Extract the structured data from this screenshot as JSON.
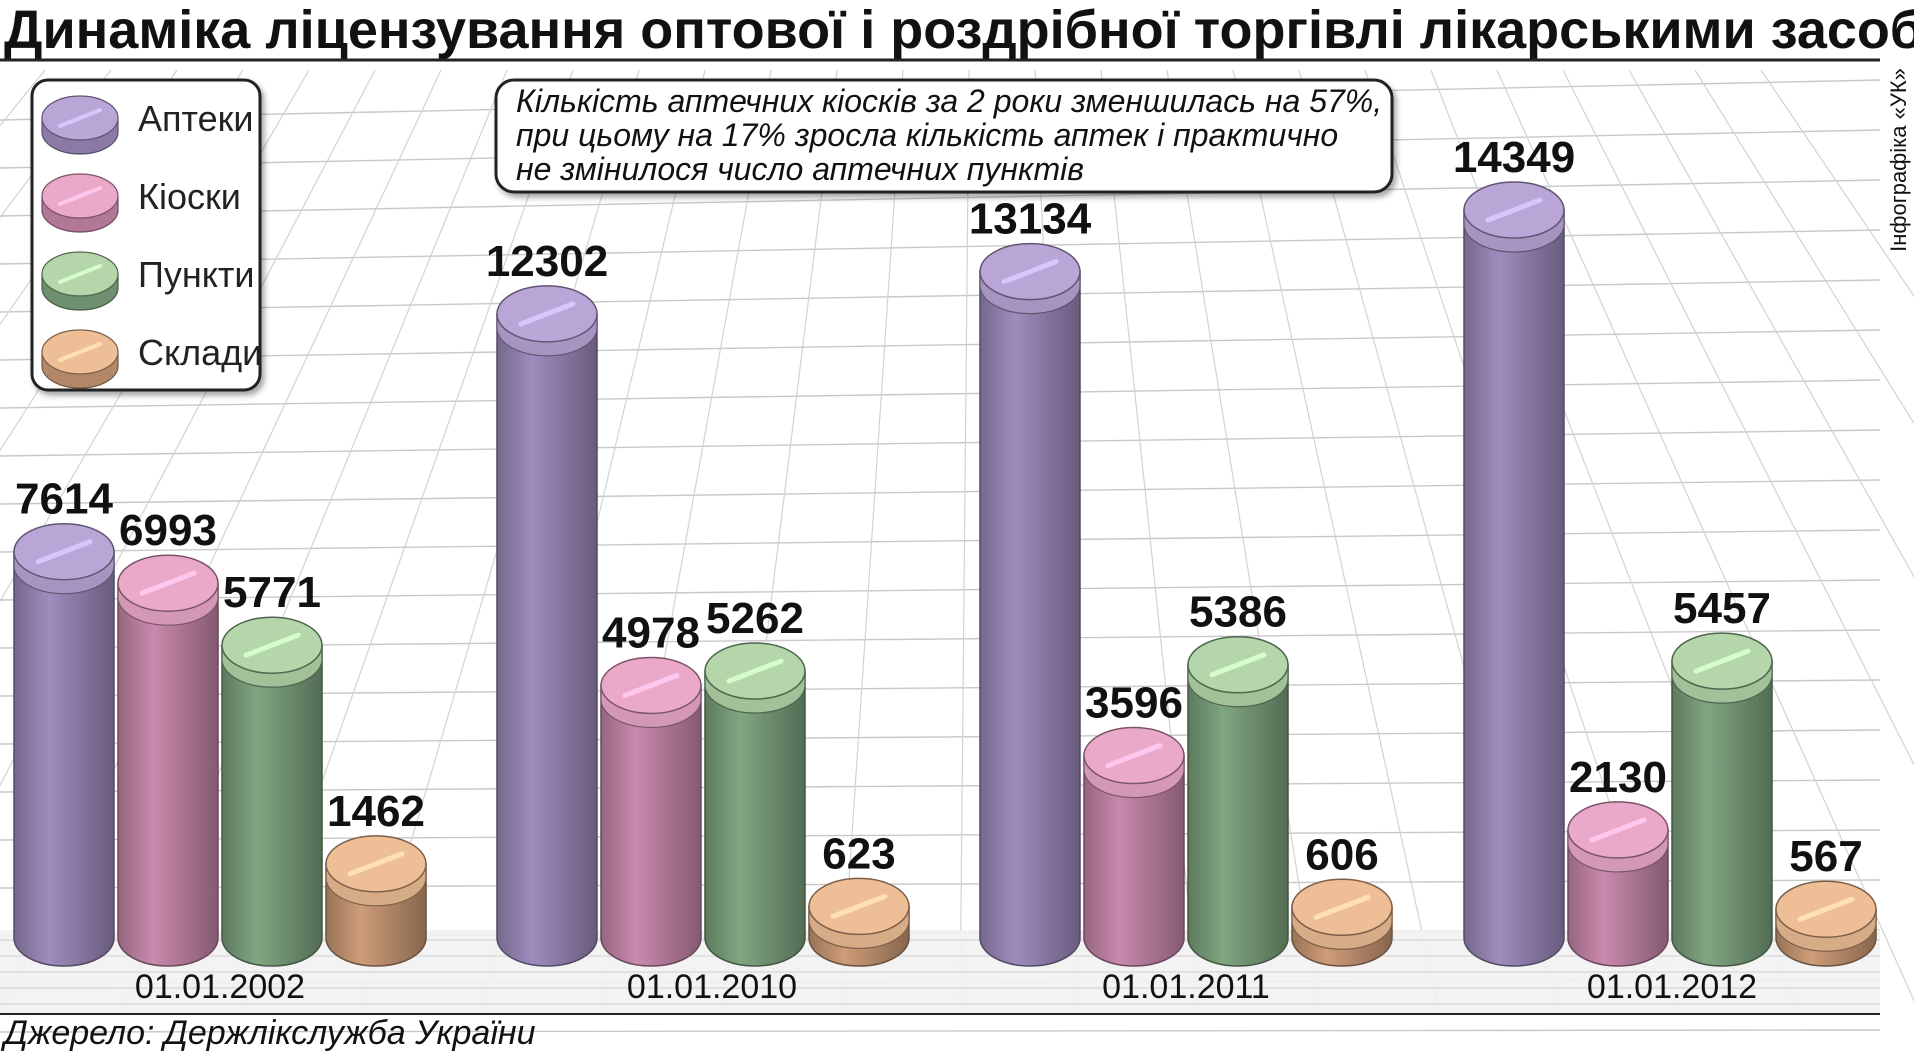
{
  "chart_data": {
    "type": "bar",
    "title": "Динаміка ліцензування оптової і роздрібної торгівлі лікарськими засобами",
    "categories": [
      "01.01.2002",
      "01.01.2010",
      "01.01.2011",
      "01.01.2012"
    ],
    "series": [
      {
        "name": "Аптеки",
        "values": [
          7614,
          12302,
          13134,
          14349
        ],
        "color": "#8a7aa5",
        "top_color": "#b9a6d6"
      },
      {
        "name": "Кіоски",
        "values": [
          6993,
          4978,
          3596,
          2130
        ],
        "color": "#b07896",
        "top_color": "#eaa9c9"
      },
      {
        "name": "Пункти",
        "values": [
          5771,
          5262,
          5386,
          5457
        ],
        "color": "#6f9070",
        "top_color": "#b4d6aa"
      },
      {
        "name": "Склади",
        "values": [
          1462,
          623,
          606,
          567
        ],
        "color": "#b38868",
        "top_color": "#eebf96"
      }
    ],
    "legend_position": "top-left",
    "grid": true,
    "ylim": [
      0,
      16000
    ],
    "annotation": "Кількість аптечних кіосків за 2 роки зменшилась на 57%, при цьому на 17% зросла кількість аптек і практично не змінилося число аптечних пунктів",
    "annotation_lines": [
      "Кількість аптечних кіосків за 2 роки зменшилась на 57%,",
      "при цьому на 17% зросла кількість аптек і практично",
      "не змінилося число аптечних пунктів"
    ],
    "source": "Джерело: Держлікслужба України",
    "credit": "Інфографіка «УК»"
  }
}
